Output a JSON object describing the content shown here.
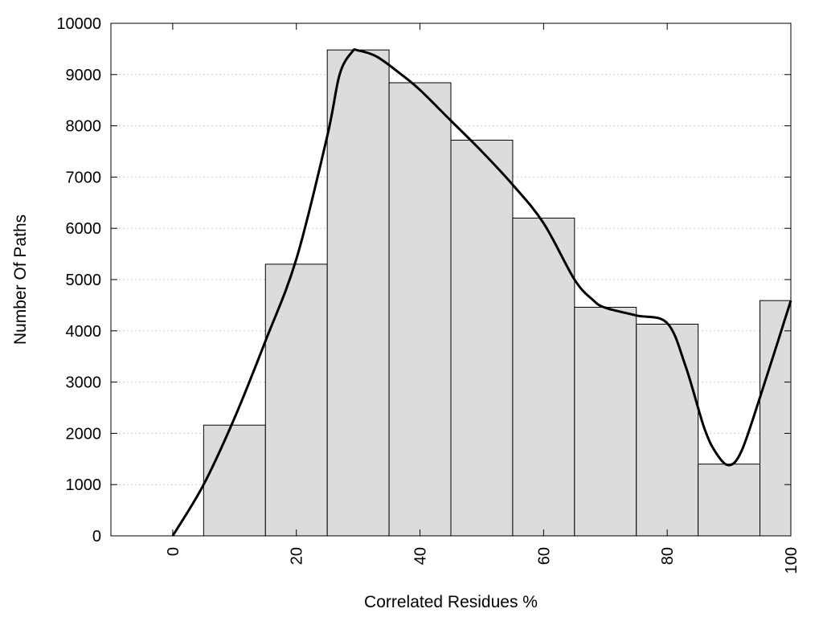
{
  "chart_data": {
    "type": "bar",
    "xlabel": "Correlated Residues %",
    "ylabel": "Number Of Paths",
    "xlim": [
      -10,
      100
    ],
    "ylim": [
      0,
      10000
    ],
    "xticks": [
      0,
      20,
      40,
      60,
      80,
      100
    ],
    "yticks": [
      0,
      1000,
      2000,
      3000,
      4000,
      5000,
      6000,
      7000,
      8000,
      9000,
      10000
    ],
    "grid": "horizontal dotted",
    "bar_color": "#dcdcdc",
    "bars": [
      {
        "x0": 5,
        "x1": 15,
        "value": 2160
      },
      {
        "x0": 15,
        "x1": 25,
        "value": 5300
      },
      {
        "x0": 25,
        "x1": 35,
        "value": 9480
      },
      {
        "x0": 35,
        "x1": 45,
        "value": 8840
      },
      {
        "x0": 45,
        "x1": 55,
        "value": 7720
      },
      {
        "x0": 55,
        "x1": 65,
        "value": 6200
      },
      {
        "x0": 65,
        "x1": 75,
        "value": 4460
      },
      {
        "x0": 75,
        "x1": 85,
        "value": 4130
      },
      {
        "x0": 85,
        "x1": 95,
        "value": 1400
      },
      {
        "x0": 95,
        "x1": 100,
        "value": 4590
      }
    ],
    "curve": {
      "x": [
        0,
        5,
        10,
        15,
        20,
        25,
        27,
        29,
        30,
        33,
        37,
        40,
        45,
        50,
        55,
        60,
        65,
        68,
        70,
        75,
        80,
        83,
        86,
        88,
        90,
        92,
        95,
        100
      ],
      "y": [
        0,
        1000,
        2300,
        3800,
        5400,
        7800,
        9000,
        9440,
        9470,
        9350,
        9000,
        8700,
        8100,
        7500,
        6850,
        6100,
        5000,
        4600,
        4450,
        4300,
        4150,
        3300,
        2100,
        1600,
        1380,
        1650,
        2700,
        4590
      ]
    }
  }
}
